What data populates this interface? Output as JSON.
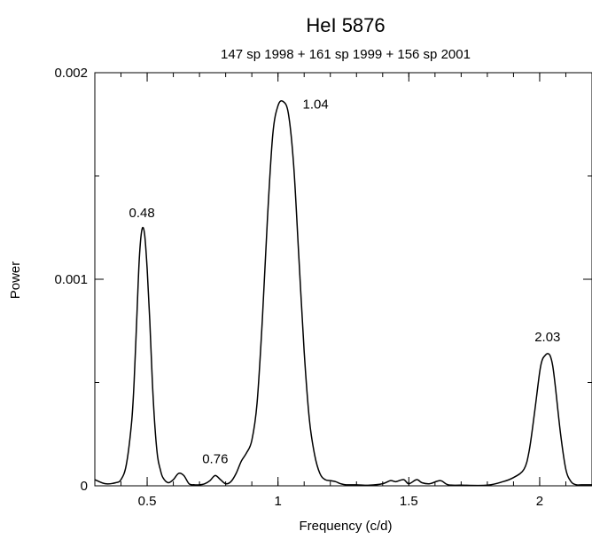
{
  "chart_data": {
    "type": "line",
    "title": "HeI 5876",
    "subtitle": "147 sp 1998 + 161 sp 1999 + 156 sp 2001",
    "xlabel": "Frequency (c/d)",
    "ylabel": "Power",
    "xlim": [
      0.3,
      2.2
    ],
    "ylim": [
      0,
      0.002
    ],
    "x_ticks": [
      0.5,
      1,
      1.5,
      2
    ],
    "x_tick_labels": [
      "0.5",
      "1",
      "1.5",
      "2"
    ],
    "y_ticks": [
      0,
      0.001,
      0.002
    ],
    "y_tick_labels": [
      "0",
      "0.001",
      "0.002"
    ],
    "grid": false,
    "series": [
      {
        "x": [
          0.3,
          0.34,
          0.38,
          0.4,
          0.42,
          0.44,
          0.45,
          0.46,
          0.47,
          0.48,
          0.49,
          0.5,
          0.51,
          0.52,
          0.53,
          0.54,
          0.55,
          0.56,
          0.58,
          0.6,
          0.62,
          0.64,
          0.66,
          0.68,
          0.7,
          0.72,
          0.74,
          0.76,
          0.78,
          0.8,
          0.82,
          0.84,
          0.86,
          0.88,
          0.9,
          0.92,
          0.94,
          0.96,
          0.98,
          1.0,
          1.02,
          1.04,
          1.06,
          1.08,
          1.1,
          1.12,
          1.14,
          1.16,
          1.18,
          1.2,
          1.22,
          1.24,
          1.26,
          1.3,
          1.35,
          1.4,
          1.43,
          1.45,
          1.48,
          1.5,
          1.53,
          1.55,
          1.58,
          1.62,
          1.65,
          1.7,
          1.8,
          1.86,
          1.9,
          1.94,
          1.96,
          1.98,
          2.0,
          2.01,
          2.02,
          2.03,
          2.04,
          2.05,
          2.06,
          2.08,
          2.1,
          2.12,
          2.14,
          2.16,
          2.2
        ],
        "y": [
          3e-05,
          1e-05,
          1.5e-05,
          3e-05,
          0.0001,
          0.0003,
          0.0005,
          0.0008,
          0.0011,
          0.00124,
          0.00122,
          0.00105,
          0.0008,
          0.0005,
          0.00028,
          0.00014,
          8e-05,
          4e-05,
          1.5e-05,
          3e-05,
          6e-05,
          5e-05,
          1e-05,
          5e-06,
          5e-06,
          1e-05,
          2.5e-05,
          5e-05,
          3e-05,
          1e-05,
          2e-05,
          6e-05,
          0.00012,
          0.00016,
          0.00022,
          0.0004,
          0.0008,
          0.0013,
          0.0017,
          0.00184,
          0.00186,
          0.0018,
          0.00155,
          0.0011,
          0.00065,
          0.00032,
          0.00015,
          6e-05,
          3e-05,
          2.5e-05,
          2e-05,
          1e-05,
          5e-06,
          5e-06,
          3e-06,
          1e-05,
          2.5e-05,
          2e-05,
          3e-05,
          1e-05,
          3e-05,
          1.5e-05,
          1e-05,
          2.5e-05,
          5e-06,
          3e-06,
          3e-06,
          2e-05,
          4e-05,
          8e-05,
          0.00017,
          0.00035,
          0.00055,
          0.00061,
          0.00063,
          0.00064,
          0.00063,
          0.00058,
          0.00048,
          0.00025,
          8e-05,
          2e-05,
          5e-06,
          5e-06,
          5e-06
        ]
      }
    ],
    "annotations": [
      {
        "text": "0.48",
        "x": 0.48,
        "y": 0.00124
      },
      {
        "text": "0.76",
        "x": 0.76,
        "y": 5e-05
      },
      {
        "text": "1.04",
        "x": 1.04,
        "y": 0.00186
      },
      {
        "text": "2.03",
        "x": 2.03,
        "y": 0.00064
      }
    ]
  }
}
